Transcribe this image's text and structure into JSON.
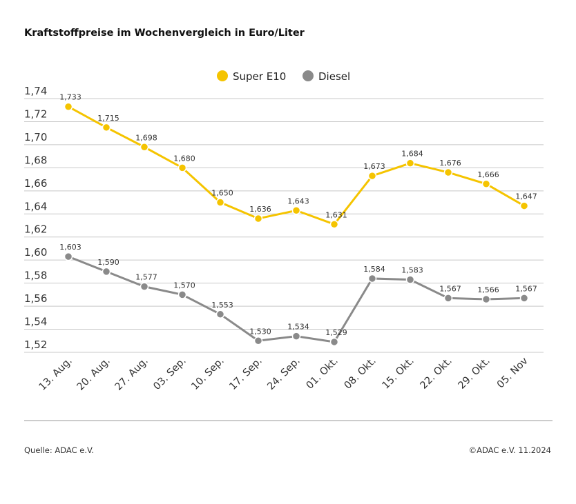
{
  "title": "Kraftstoffpreise im Wochenvergleich in Euro/Liter",
  "source": "Quelle: ADAC e.V.",
  "copyright": "©ADAC e.V. 11.2024",
  "chart_data": {
    "type": "line",
    "title": "Kraftstoffpreise im Wochenvergleich in Euro/Liter",
    "categories": [
      "13. Aug.",
      "20. Aug.",
      "27. Aug.",
      "03. Sep.",
      "10. Sep.",
      "17. Sep.",
      "24. Sep.",
      "01. Okt.",
      "08. Okt.",
      "15. Okt.",
      "22. Okt.",
      "29. Okt.",
      "05. Nov"
    ],
    "yticks": [
      "1,52",
      "1,54",
      "1,56",
      "1,58",
      "1,60",
      "1,62",
      "1,64",
      "1,66",
      "1,68",
      "1,70",
      "1,72",
      "1,74"
    ],
    "ylim": [
      1.52,
      1.74
    ],
    "grid": true,
    "legend": "top-center",
    "series": [
      {
        "name": "Super E10",
        "color": "#f5c400",
        "values": [
          1.733,
          1.715,
          1.698,
          1.68,
          1.65,
          1.636,
          1.643,
          1.631,
          1.673,
          1.684,
          1.676,
          1.666,
          1.647
        ],
        "labels": [
          "1,733",
          "1,715",
          "1,698",
          "1,680",
          "1,650",
          "1,636",
          "1,643",
          "1,631",
          "1,673",
          "1,684",
          "1,676",
          "1,666",
          "1,647"
        ]
      },
      {
        "name": "Diesel",
        "color": "#8a8a8a",
        "values": [
          1.603,
          1.59,
          1.577,
          1.57,
          1.553,
          1.53,
          1.534,
          1.529,
          1.584,
          1.583,
          1.567,
          1.566,
          1.567
        ],
        "labels": [
          "1,603",
          "1,590",
          "1,577",
          "1,570",
          "1,553",
          "1,530",
          "1,534",
          "1,529",
          "1,584",
          "1,583",
          "1,567",
          "1,566",
          "1,567"
        ]
      }
    ]
  }
}
